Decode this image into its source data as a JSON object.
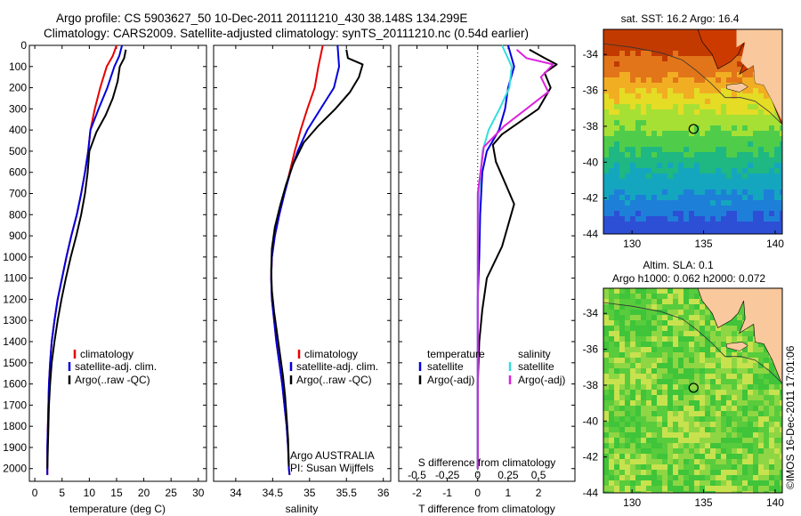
{
  "header": {
    "title_line1": "Argo profile: CS 5903627_50 10-Dec-2011 20111210_430 38.148S 134.299E",
    "title_line2": "Climatology: CARS2009. Satellite-adjusted climatology: synTS_20111210.nc (0.54d earlier)"
  },
  "credit": "©IMOS 16-Dec-2011 17:01:06",
  "colors": {
    "climatology": "#e60000",
    "satellite_adj": "#0000dd",
    "argo": "#000000",
    "salinity_sat": "#33dddd",
    "salinity_argo": "#dd22dd",
    "land": "#f9c89c"
  },
  "depth_axis": {
    "ticks": [
      0,
      100,
      200,
      300,
      400,
      500,
      600,
      700,
      800,
      900,
      1000,
      1100,
      1200,
      1300,
      1400,
      1500,
      1600,
      1700,
      1800,
      1900,
      2000
    ],
    "range": [
      0,
      2060
    ],
    "inverted": true
  },
  "panels": {
    "temperature": {
      "xlabel": "temperature (deg C)",
      "xlim": [
        -1,
        31.5
      ],
      "xticks": [
        0,
        5,
        10,
        15,
        20,
        25,
        30
      ],
      "legend": [
        "climatology",
        "satellite-adj. clim.",
        "Argo(..raw -QC)"
      ]
    },
    "salinity": {
      "xlabel": "salinity",
      "xlim": [
        33.7,
        36.1
      ],
      "xticks": [
        34,
        34.5,
        35,
        35.5,
        36
      ],
      "legend": [
        "climatology",
        "satellite-adj. clim.",
        "Argo(..raw -QC)"
      ],
      "note_line1": "Argo AUSTRALIA",
      "note_line2": "PI: Susan Wijffels"
    },
    "difference": {
      "xlabel": "T difference from climatology",
      "xlabel_top": "S difference from climatology",
      "xlim": [
        -2.6,
        3.2
      ],
      "xticks": [
        -2,
        -1,
        0,
        1,
        2
      ],
      "sticks": [
        "-0.5",
        "-0.25",
        "0",
        "0.25",
        "0.5"
      ],
      "legend_t_title": "temperature",
      "legend_t": [
        "satellite",
        "Argo(-adj)"
      ],
      "legend_s_title": "salinity",
      "legend_s": [
        "satellite",
        "Argo(-adj)"
      ]
    }
  },
  "maps": {
    "sst": {
      "title": "sat. SST: 16.2 Argo: 16.4",
      "xticks": [
        130,
        135,
        140
      ],
      "yticks": [
        -34,
        -36,
        -38,
        -40,
        -42,
        -44
      ],
      "lon_range": [
        128,
        140.5
      ],
      "lat_range": [
        -44,
        -32.6
      ],
      "marker": {
        "lon": 134.299,
        "lat": -38.148
      }
    },
    "sla": {
      "title_line1": "Altim. SLA: 0.1",
      "title_line2": "Argo h1000: 0.062 h2000: 0.072",
      "xticks": [
        130,
        135,
        140
      ],
      "yticks": [
        -34,
        -36,
        -38,
        -40,
        -42,
        -44
      ],
      "lon_range": [
        128,
        140.5
      ],
      "lat_range": [
        -44,
        -32.6
      ],
      "marker": {
        "lon": 134.299,
        "lat": -38.148
      }
    }
  },
  "chart_data": [
    {
      "type": "line",
      "name": "temperature",
      "series": [
        {
          "name": "climatology",
          "color": "#e60000",
          "x": [
            15.0,
            14.3,
            13.2,
            12.0,
            11.0,
            10.2,
            9.8,
            9.2,
            8.5,
            7.7,
            6.7,
            5.8,
            5.0,
            4.2,
            3.6,
            3.1,
            2.8,
            2.6,
            2.5,
            2.4,
            2.3,
            2.3
          ],
          "y": [
            0,
            50,
            100,
            200,
            300,
            400,
            500,
            600,
            700,
            800,
            900,
            1000,
            1100,
            1200,
            1300,
            1400,
            1500,
            1600,
            1700,
            1800,
            1900,
            2030
          ]
        },
        {
          "name": "satellite-adj. clim.",
          "color": "#0000dd",
          "x": [
            16.0,
            15.5,
            14.6,
            13.3,
            11.7,
            10.2,
            9.8,
            9.2,
            8.5,
            7.7,
            6.7,
            5.8,
            5.0,
            4.2,
            3.6,
            3.1,
            2.8,
            2.6,
            2.5,
            2.4,
            2.3,
            2.3
          ],
          "y": [
            0,
            50,
            100,
            200,
            300,
            400,
            500,
            600,
            700,
            800,
            900,
            1000,
            1100,
            1200,
            1300,
            1400,
            1500,
            1600,
            1700,
            1800,
            1900,
            2030
          ]
        },
        {
          "name": "Argo(..raw -QC)",
          "color": "#000000",
          "x": [
            16.7,
            16.4,
            15.6,
            15.2,
            14.3,
            13.0,
            11.3,
            10.0,
            9.7,
            9.2,
            8.5,
            7.6,
            6.6,
            5.7,
            4.9,
            4.2,
            3.6,
            3.1,
            2.8,
            2.6,
            2.5,
            2.4,
            2.3
          ],
          "y": [
            20,
            60,
            100,
            170,
            250,
            330,
            410,
            500,
            600,
            700,
            800,
            900,
            1000,
            1100,
            1200,
            1300,
            1400,
            1500,
            1600,
            1700,
            1800,
            1900,
            2000
          ]
        }
      ]
    },
    {
      "type": "line",
      "name": "salinity",
      "series": [
        {
          "name": "climatology",
          "color": "#e60000",
          "x": [
            35.18,
            35.12,
            35.07,
            34.97,
            34.88,
            34.8,
            34.73,
            34.66,
            34.59,
            34.53,
            34.49,
            34.48,
            34.49,
            34.52,
            34.55,
            34.59,
            34.63,
            34.66,
            34.69,
            34.71,
            34.72,
            34.73
          ],
          "y": [
            0,
            100,
            200,
            300,
            400,
            500,
            600,
            700,
            800,
            900,
            1000,
            1100,
            1200,
            1300,
            1400,
            1500,
            1600,
            1700,
            1800,
            1900,
            2000,
            2030
          ]
        },
        {
          "name": "satellite-adj. clim.",
          "color": "#0000dd",
          "x": [
            35.38,
            35.4,
            35.33,
            35.15,
            34.97,
            34.84,
            34.74,
            34.66,
            34.59,
            34.53,
            34.49,
            34.48,
            34.49,
            34.52,
            34.55,
            34.59,
            34.63,
            34.66,
            34.69,
            34.71,
            34.72,
            34.73
          ],
          "y": [
            0,
            100,
            200,
            300,
            400,
            500,
            600,
            700,
            800,
            900,
            1000,
            1100,
            1200,
            1300,
            1400,
            1500,
            1600,
            1700,
            1800,
            1900,
            2000,
            2030
          ]
        },
        {
          "name": "Argo(..raw -QC)",
          "color": "#000000",
          "x": [
            35.5,
            35.52,
            35.72,
            35.67,
            35.55,
            35.35,
            35.12,
            34.92,
            34.78,
            34.68,
            34.6,
            34.53,
            34.49,
            34.48,
            34.49,
            34.52,
            34.56,
            34.6,
            34.64,
            34.67,
            34.69,
            34.71,
            34.72
          ],
          "y": [
            20,
            60,
            90,
            150,
            220,
            300,
            380,
            460,
            560,
            660,
            760,
            860,
            960,
            1060,
            1160,
            1260,
            1360,
            1460,
            1560,
            1660,
            1760,
            1860,
            1990
          ]
        }
      ]
    },
    {
      "type": "line",
      "name": "difference",
      "zero_line": true,
      "series": [
        {
          "name": "temperature satellite",
          "color": "#0000dd",
          "axis": "T",
          "x": [
            1.0,
            1.2,
            1.0,
            0.9,
            0.7,
            0.3,
            0.15,
            0.08,
            0.05,
            0.0,
            0.0,
            0.0
          ],
          "y": [
            0,
            100,
            200,
            300,
            400,
            500,
            600,
            800,
            1000,
            1200,
            1600,
            2000
          ]
        },
        {
          "name": "temperature Argo(-adj)",
          "color": "#000000",
          "axis": "T",
          "x": [
            1.7,
            2.2,
            2.6,
            2.2,
            2.4,
            2.0,
            1.2,
            0.8,
            0.5,
            0.6,
            0.9,
            1.2,
            1.0,
            0.8,
            0.3,
            0.15,
            0.05,
            0.0,
            0.0
          ],
          "y": [
            20,
            60,
            90,
            130,
            200,
            300,
            380,
            420,
            470,
            550,
            650,
            750,
            850,
            950,
            1100,
            1250,
            1400,
            1600,
            2000
          ]
        },
        {
          "name": "salinity satellite",
          "color": "#33dddd",
          "axis": "S",
          "x": [
            0.2,
            0.28,
            0.26,
            0.18,
            0.09,
            0.04,
            0.01,
            0.0,
            0.0,
            0.0
          ],
          "y": [
            0,
            100,
            200,
            300,
            400,
            500,
            700,
            1000,
            1500,
            2000
          ]
        },
        {
          "name": "salinity Argo(-adj)",
          "color": "#dd22dd",
          "axis": "S",
          "x": [
            0.32,
            0.4,
            0.62,
            0.52,
            0.58,
            0.4,
            0.22,
            0.05,
            0.0,
            0.0
          ],
          "y": [
            20,
            60,
            90,
            150,
            220,
            300,
            380,
            480,
            700,
            2000
          ]
        }
      ]
    }
  ]
}
